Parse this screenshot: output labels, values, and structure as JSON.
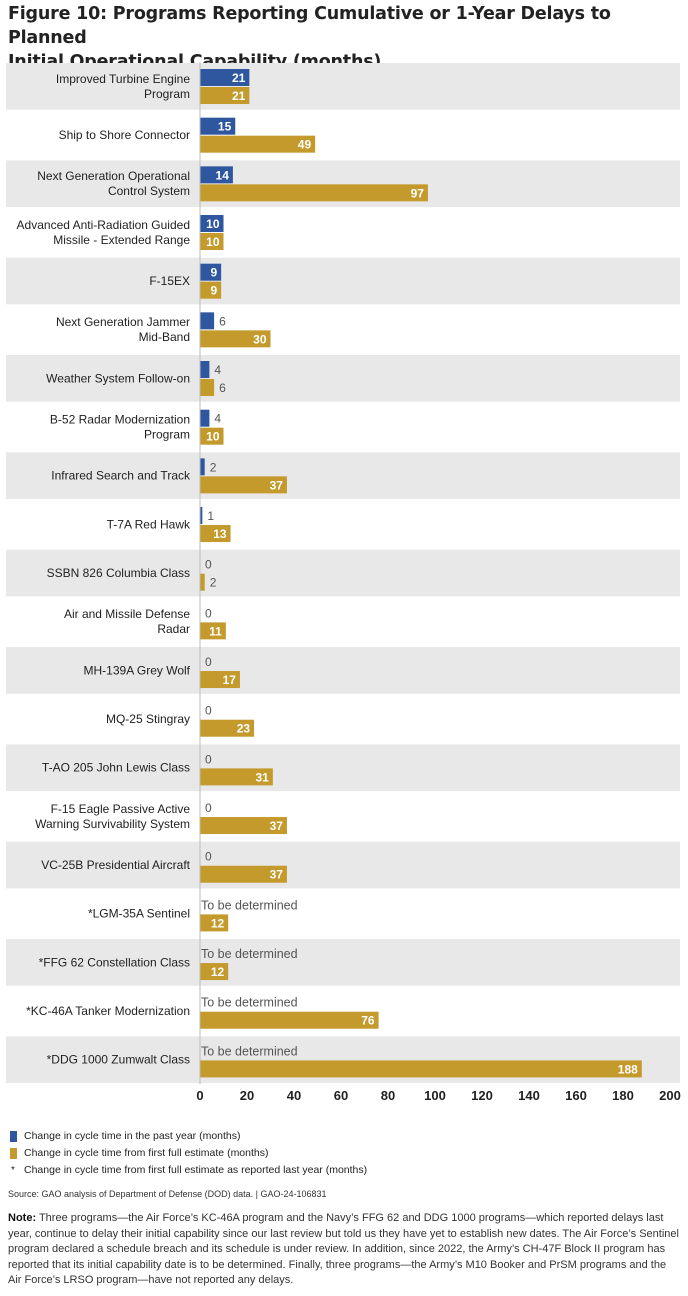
{
  "title_line1": "Figure 10: Programs Reporting Cumulative or 1-Year Delays to Planned",
  "title_line2": "Initial Operational Capability (months)",
  "colors": {
    "past_year": "#2e57a0",
    "first_estimate": "#c49a2c",
    "band": "#e8e8e8"
  },
  "chart_data": {
    "type": "bar",
    "orientation": "horizontal",
    "xlim": [
      0,
      200
    ],
    "xticks": [
      "0",
      "20",
      "40",
      "60",
      "80",
      "100",
      "120",
      "140",
      "160",
      "180",
      "200"
    ],
    "categories": [
      [
        "Improved Turbine Engine",
        "Program"
      ],
      [
        "Ship to Shore Connector"
      ],
      [
        "Next Generation Operational",
        "Control System"
      ],
      [
        "Advanced Anti-Radiation Guided",
        "Missile - Extended Range"
      ],
      [
        "F-15EX"
      ],
      [
        "Next Generation Jammer",
        "Mid-Band"
      ],
      [
        "Weather System Follow-on"
      ],
      [
        "B-52 Radar Modernization",
        "Program"
      ],
      [
        "Infrared Search and Track"
      ],
      [
        "T-7A Red Hawk"
      ],
      [
        "SSBN 826 Columbia Class"
      ],
      [
        "Air and Missile Defense",
        "Radar"
      ],
      [
        "MH-139A Grey Wolf"
      ],
      [
        "MQ-25 Stingray"
      ],
      [
        "T-AO 205 John Lewis Class"
      ],
      [
        "F-15 Eagle Passive Active",
        "Warning Survivability System"
      ],
      [
        "VC-25B Presidential Aircraft"
      ],
      [
        "*LGM-35A Sentinel"
      ],
      [
        "*FFG 62 Constellation Class"
      ],
      [
        "*KC-46A Tanker Modernization"
      ],
      [
        "*DDG 1000 Zumwalt Class"
      ]
    ],
    "series": [
      {
        "name": "Change in cycle time in the past year (months)",
        "values": [
          21,
          15,
          14,
          10,
          9,
          6,
          4,
          4,
          2,
          1,
          0,
          0,
          0,
          0,
          0,
          0,
          0,
          null,
          null,
          null,
          null
        ],
        "labels": [
          "21",
          "15",
          "14",
          "10",
          "9",
          "6",
          "4",
          "4",
          "2",
          "1",
          "0",
          "0",
          "0",
          "0",
          "0",
          "0",
          "0",
          "To be determined",
          "To be determined",
          "To be determined",
          "To be determined"
        ]
      },
      {
        "name": "Change in cycle time from first full estimate (months)",
        "values": [
          21,
          49,
          97,
          10,
          9,
          30,
          6,
          10,
          37,
          13,
          2,
          11,
          17,
          23,
          31,
          37,
          37,
          12,
          12,
          76,
          188
        ],
        "labels": [
          "21",
          "49",
          "97",
          "10",
          "9",
          "30",
          "6",
          "10",
          "37",
          "13",
          "2",
          "11",
          "17",
          "23",
          "31",
          "37",
          "37",
          "12",
          "12",
          "76",
          "188"
        ]
      }
    ]
  },
  "legend": {
    "item1": "Change in cycle time in the past year (months)",
    "item2": "Change in cycle time from first full estimate (months)",
    "item3": "Change in cycle time from first full estimate as reported last year (months)",
    "star": "*"
  },
  "source": "Source: GAO analysis of Department of Defense (DOD) data.  |  GAO-24-106831",
  "note_label": "Note:",
  "note_text": " Three programs—the Air Force’s KC-46A program and the Navy’s FFG 62 and DDG 1000 programs—which reported delays last year, continue to delay their initial capability since our last review but told us they have yet to establish new dates. The Air Force’s Sentinel program declared a schedule breach and its schedule is under review. In addition, since 2022, the Army’s CH-47F Block II program has reported that its initial capability date is to be determined. Finally, three programs—the Army’s M10 Booker and PrSM programs and the Air Force’s LRSO program—have not reported any delays."
}
